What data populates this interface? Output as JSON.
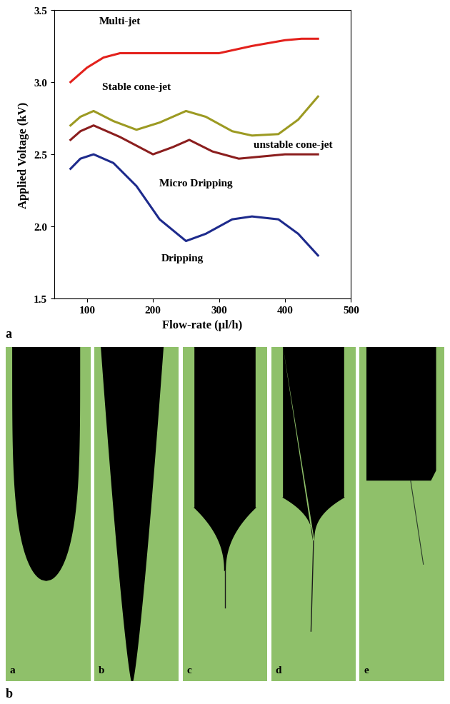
{
  "chart_data": {
    "type": "line",
    "x_label": "Flow-rate (µl/h)",
    "y_label": "Applied Voltage (kV)",
    "panel_label": "a",
    "xlim": [
      50,
      500
    ],
    "xticks": [
      100,
      200,
      300,
      400,
      500
    ],
    "ylim": [
      1.5,
      3.5
    ],
    "yticks": [
      1.5,
      2.0,
      2.5,
      3.0,
      3.5
    ],
    "grid": false,
    "series": [
      {
        "color": "#e3211c",
        "line_style": "solid",
        "x": [
          75,
          100,
          125,
          150,
          200,
          250,
          300,
          350,
          400,
          425,
          450
        ],
        "values": [
          3.0,
          3.1,
          3.17,
          3.2,
          3.2,
          3.2,
          3.2,
          3.25,
          3.29,
          3.3,
          3.3
        ]
      },
      {
        "color": "#9c9a22",
        "line_style": "solid",
        "x": [
          75,
          90,
          110,
          140,
          175,
          210,
          250,
          280,
          320,
          350,
          390,
          420,
          450
        ],
        "values": [
          2.7,
          2.76,
          2.8,
          2.73,
          2.67,
          2.72,
          2.8,
          2.76,
          2.66,
          2.63,
          2.64,
          2.74,
          2.9
        ]
      },
      {
        "color": "#8b1e1e",
        "line_style": "solid",
        "x": [
          75,
          90,
          110,
          150,
          200,
          230,
          255,
          290,
          330,
          400,
          450
        ],
        "values": [
          2.6,
          2.66,
          2.7,
          2.62,
          2.5,
          2.55,
          2.6,
          2.52,
          2.47,
          2.5,
          2.5
        ]
      },
      {
        "color": "#1d2a8c",
        "line_style": "solid",
        "x": [
          75,
          90,
          110,
          140,
          175,
          210,
          250,
          280,
          320,
          350,
          390,
          420,
          450
        ],
        "values": [
          2.4,
          2.47,
          2.5,
          2.44,
          2.28,
          2.05,
          1.9,
          1.95,
          2.05,
          2.07,
          2.05,
          1.95,
          1.8
        ]
      }
    ],
    "annotations": [
      {
        "text": "Multi-jet",
        "x": 150,
        "y": 3.42
      },
      {
        "text": "Stable cone-jet",
        "x": 175,
        "y": 2.97
      },
      {
        "text": "unstable cone-jet",
        "x": 412,
        "y": 2.565
      },
      {
        "text": "Micro Dripping",
        "x": 265,
        "y": 2.3
      },
      {
        "text": "Dripping",
        "x": 245,
        "y": 1.78
      }
    ]
  },
  "photo_panels": {
    "labels": [
      "a",
      "b",
      "c",
      "d",
      "e"
    ],
    "caption": "b"
  }
}
